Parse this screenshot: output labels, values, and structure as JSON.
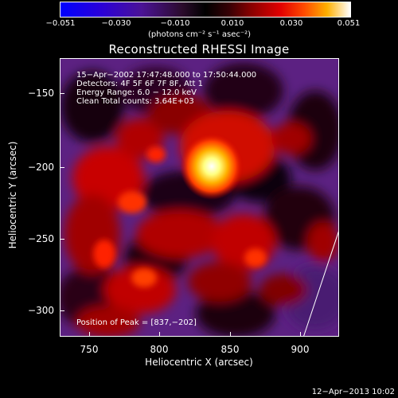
{
  "colorbar": {
    "ticks": [
      "−0.051",
      "−0.030",
      "−0.010",
      "0.010",
      "0.030",
      "0.051"
    ],
    "units": "(photons cm⁻² s⁻¹ asec⁻²)"
  },
  "title": "Reconstructed RHESSI Image",
  "info": {
    "time": "15−Apr−2002 17:47:48.000 to 17:50:44.000",
    "detectors": "Detectors: 4F 5F 6F 7F 8F, Att 1",
    "energy": "Energy Range: 6.0 − 12.0 keV",
    "clean": "Clean    Total counts: 3.64E+03",
    "peak": "Position of Peak = [837,−202]"
  },
  "axes": {
    "xlabel": "Heliocentric X (arcsec)",
    "ylabel": "Heliocentric Y (arcsec)",
    "xticks": [
      "750",
      "800",
      "850",
      "900"
    ],
    "yticks": [
      "−150",
      "−200",
      "−250",
      "−300"
    ]
  },
  "footer": "12−Apr−2013 10:02",
  "colors": {
    "background": "#000000",
    "foreground": "#ffffff"
  }
}
